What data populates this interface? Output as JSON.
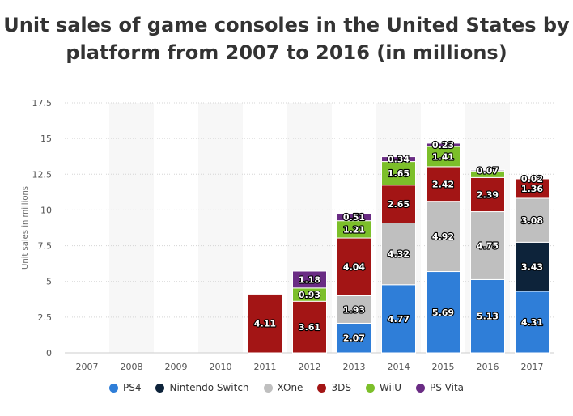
{
  "title_line1": "Unit sales of game consoles in the United States by",
  "title_line2": "platform from 2007 to 2016 (in millions)",
  "chart_data": {
    "type": "bar",
    "stacked": true,
    "categories": [
      "2007",
      "2008",
      "2009",
      "2010",
      "2011",
      "2012",
      "2013",
      "2014",
      "2015",
      "2016",
      "2017"
    ],
    "ylabel": "Unit sales in millions",
    "xlabel": "",
    "ylim": [
      0,
      17.5
    ],
    "yticks": [
      "0",
      "2.5",
      "5",
      "7.5",
      "10",
      "12.5",
      "15",
      "17.5"
    ],
    "grid": true,
    "legend_position": "bottom",
    "series": [
      {
        "name": "PS4",
        "color": "#2f7ed8",
        "values": [
          null,
          null,
          null,
          null,
          null,
          null,
          2.07,
          4.77,
          5.69,
          5.13,
          4.31
        ]
      },
      {
        "name": "Nintendo Switch",
        "color": "#0d233a",
        "values": [
          null,
          null,
          null,
          null,
          null,
          null,
          null,
          null,
          null,
          null,
          3.43
        ]
      },
      {
        "name": "XOne",
        "color": "#bfbfbf",
        "values": [
          null,
          null,
          null,
          null,
          null,
          null,
          1.93,
          4.32,
          4.92,
          4.75,
          3.08
        ]
      },
      {
        "name": "3DS",
        "color": "#a31515",
        "values": [
          null,
          null,
          null,
          null,
          4.11,
          3.61,
          4.04,
          2.65,
          2.42,
          2.39,
          1.36
        ]
      },
      {
        "name": "WiiU",
        "color": "#7cbf2a",
        "values": [
          null,
          null,
          null,
          null,
          null,
          0.93,
          1.21,
          1.65,
          1.41,
          0.46,
          null
        ]
      },
      {
        "name": "PS Vita",
        "color": "#6a2c84",
        "values": [
          null,
          null,
          null,
          null,
          null,
          1.18,
          0.51,
          0.34,
          0.23,
          0.07,
          0.02
        ]
      }
    ],
    "labels": [
      [
        null,
        null,
        null,
        null,
        null,
        null,
        "2.07",
        "4.77",
        "5.69",
        "5.13",
        "4.31"
      ],
      [
        null,
        null,
        null,
        null,
        null,
        null,
        null,
        null,
        null,
        null,
        "3.43"
      ],
      [
        null,
        null,
        null,
        null,
        null,
        null,
        "1.93",
        "4.32",
        "4.92",
        "4.75",
        "3.08"
      ],
      [
        null,
        null,
        null,
        null,
        "4.11",
        "3.61",
        "4.04",
        "2.65",
        "2.42",
        "2.39",
        "1.36"
      ],
      [
        null,
        null,
        null,
        null,
        null,
        "0.93",
        "1.21",
        "1.65",
        "1.41",
        null,
        null
      ],
      [
        null,
        null,
        null,
        null,
        null,
        "1.18",
        "0.51",
        "0.34",
        "0.23",
        "0.07",
        "0.02"
      ]
    ]
  }
}
